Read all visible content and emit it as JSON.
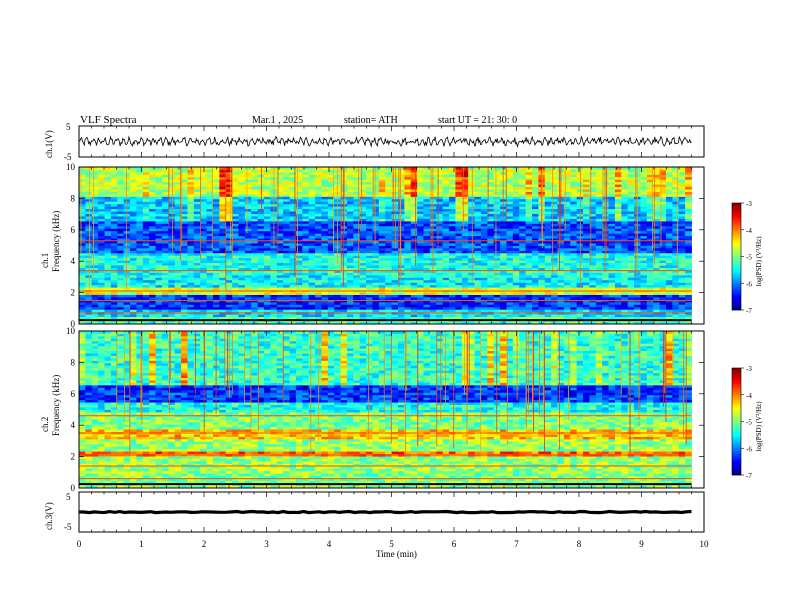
{
  "header": {
    "title": "VLF  Spectra",
    "date": "Mar.1   , 2025",
    "station": "station= ATH",
    "start": "start  UT  =    21: 30: 0"
  },
  "chart_data": [
    {
      "type": "line",
      "name": "ch.1 waveform",
      "ylabel": "ch.1(V)",
      "ylim": [
        -5,
        5
      ],
      "yticks": [
        "5",
        "-5"
      ],
      "xlim": [
        0,
        10
      ],
      "mean": 0.0,
      "amplitude": 1.5
    },
    {
      "type": "heatmap",
      "name": "ch.1 spectrogram",
      "ylabel": "ch.1\nFrequency  (kHz)",
      "xlim": [
        0,
        9.8
      ],
      "ylim": [
        0,
        10
      ],
      "yticks": [
        "0",
        "2",
        "4",
        "6",
        "8",
        "10"
      ],
      "colorbar": {
        "label": "log(PSD) (V²/Hz)",
        "range": [
          -7,
          -3
        ],
        "ticks": [
          "-3",
          "-4",
          "-5",
          "-6",
          "-7"
        ]
      },
      "bands_khz_log_psd": [
        {
          "f": [
            0.0,
            0.5
          ],
          "v": -5.2
        },
        {
          "f": [
            0.5,
            1.0
          ],
          "v": -5.6
        },
        {
          "f": [
            1.0,
            1.8
          ],
          "v": -6.3
        },
        {
          "f": [
            1.8,
            2.3
          ],
          "v": -4.6
        },
        {
          "f": [
            2.3,
            3.2
          ],
          "v": -5.5
        },
        {
          "f": [
            3.2,
            4.6
          ],
          "v": -5.4
        },
        {
          "f": [
            4.6,
            6.5
          ],
          "v": -6.2
        },
        {
          "f": [
            6.5,
            8.2
          ],
          "v": -5.7
        },
        {
          "f": [
            8.2,
            10.0
          ],
          "v": -4.8
        }
      ],
      "lines_khz": [
        0.7,
        1.5,
        2.1,
        3.4,
        5.3
      ]
    },
    {
      "type": "heatmap",
      "name": "ch.2 spectrogram",
      "ylabel": "ch.2\nFrequency  (kHz)",
      "xlim": [
        0,
        9.8
      ],
      "ylim": [
        0,
        10
      ],
      "yticks": [
        "0",
        "2",
        "4",
        "6",
        "8",
        "10"
      ],
      "colorbar": {
        "label": "log(PSD) (V²/Hz)",
        "range": [
          -7,
          -3
        ],
        "ticks": [
          "-3",
          "-4",
          "-5",
          "-6",
          "-7"
        ]
      },
      "bands_khz_log_psd": [
        {
          "f": [
            0.0,
            1.0
          ],
          "v": -5.0
        },
        {
          "f": [
            1.0,
            2.0
          ],
          "v": -4.9
        },
        {
          "f": [
            2.0,
            2.4
          ],
          "v": -3.9
        },
        {
          "f": [
            2.4,
            3.2
          ],
          "v": -4.9
        },
        {
          "f": [
            3.2,
            3.7
          ],
          "v": -4.3
        },
        {
          "f": [
            3.7,
            4.8
          ],
          "v": -5.0
        },
        {
          "f": [
            4.8,
            5.5
          ],
          "v": -5.4
        },
        {
          "f": [
            5.5,
            6.6
          ],
          "v": -6.3
        },
        {
          "f": [
            6.6,
            10.0
          ],
          "v": -5.3
        }
      ],
      "lines_khz": [
        0.6,
        1.4,
        2.1,
        3.5,
        4.6
      ]
    },
    {
      "type": "line",
      "name": "ch.3 waveform",
      "ylabel": "ch.3(V)",
      "ylim": [
        -5,
        5
      ],
      "yticks": [
        "5",
        "-5"
      ],
      "xlim": [
        0,
        10
      ],
      "mean": 0.0,
      "amplitude": 0.3
    }
  ],
  "x_axis": {
    "label": "Time  (min)",
    "ticks": [
      "0",
      "1",
      "2",
      "3",
      "4",
      "5",
      "6",
      "7",
      "8",
      "9",
      "10"
    ],
    "range": [
      0,
      10
    ]
  }
}
